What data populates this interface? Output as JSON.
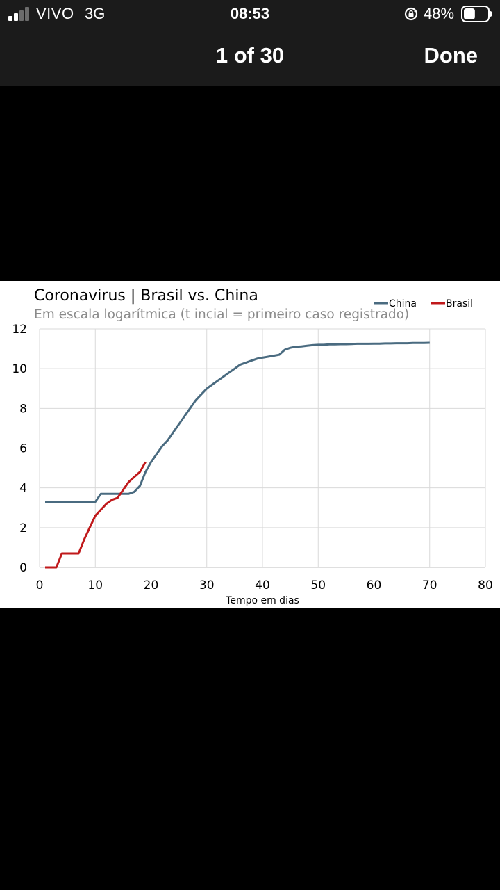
{
  "status_bar": {
    "carrier": "VIVO",
    "network": "3G",
    "time": "08:53",
    "battery_percent": "48%",
    "signal_bars_filled": 2,
    "signal_bars_total": 4,
    "battery_level": 0.48,
    "icons": [
      "signal-icon",
      "orientation-lock-icon",
      "battery-icon"
    ]
  },
  "nav_bar": {
    "title": "1 of 30",
    "done_label": "Done"
  },
  "chart_data": {
    "type": "line",
    "title": "Coronavirus | Brasil vs. China",
    "subtitle": "Em escala logarítmica (t incial = primeiro caso registrado)",
    "xlabel": "Tempo em dias",
    "ylabel": "",
    "xlim": [
      0,
      80
    ],
    "ylim": [
      0,
      12
    ],
    "xticks": [
      0,
      10,
      20,
      30,
      40,
      50,
      60,
      70,
      80
    ],
    "yticks": [
      0,
      2,
      4,
      6,
      8,
      10,
      12
    ],
    "grid": true,
    "legend_position": "top-right",
    "series": [
      {
        "name": "China",
        "color": "#4a6b80",
        "x": [
          1,
          2,
          3,
          4,
          5,
          6,
          7,
          8,
          9,
          10,
          11,
          12,
          13,
          14,
          15,
          16,
          17,
          18,
          19,
          20,
          21,
          22,
          23,
          24,
          25,
          26,
          27,
          28,
          29,
          30,
          31,
          32,
          33,
          34,
          35,
          36,
          37,
          38,
          39,
          40,
          41,
          42,
          43,
          44,
          45,
          46,
          47,
          48,
          49,
          50,
          51,
          52,
          53,
          54,
          55,
          56,
          57,
          58,
          59,
          60,
          61,
          62,
          63,
          64,
          65,
          66,
          67,
          68,
          69,
          70
        ],
        "values": [
          3.3,
          3.3,
          3.3,
          3.3,
          3.3,
          3.3,
          3.3,
          3.3,
          3.3,
          3.3,
          3.7,
          3.7,
          3.7,
          3.7,
          3.7,
          3.7,
          3.8,
          4.1,
          4.8,
          5.3,
          5.7,
          6.1,
          6.4,
          6.8,
          7.2,
          7.6,
          8.0,
          8.4,
          8.7,
          9.0,
          9.2,
          9.4,
          9.6,
          9.8,
          10.0,
          10.2,
          10.3,
          10.4,
          10.5,
          10.55,
          10.6,
          10.65,
          10.7,
          10.95,
          11.05,
          11.1,
          11.12,
          11.15,
          11.18,
          11.2,
          11.2,
          11.22,
          11.22,
          11.23,
          11.23,
          11.24,
          11.25,
          11.25,
          11.25,
          11.26,
          11.26,
          11.27,
          11.27,
          11.28,
          11.28,
          11.28,
          11.29,
          11.29,
          11.29,
          11.3
        ]
      },
      {
        "name": "Brasil",
        "color": "#c0191b",
        "x": [
          1,
          2,
          3,
          4,
          5,
          6,
          7,
          8,
          9,
          10,
          11,
          12,
          13,
          14,
          15,
          16,
          17,
          18,
          19
        ],
        "values": [
          0,
          0,
          0,
          0.7,
          0.7,
          0.7,
          0.7,
          1.4,
          2.0,
          2.6,
          2.9,
          3.2,
          3.4,
          3.5,
          3.9,
          4.3,
          4.55,
          4.8,
          5.3
        ]
      }
    ]
  }
}
